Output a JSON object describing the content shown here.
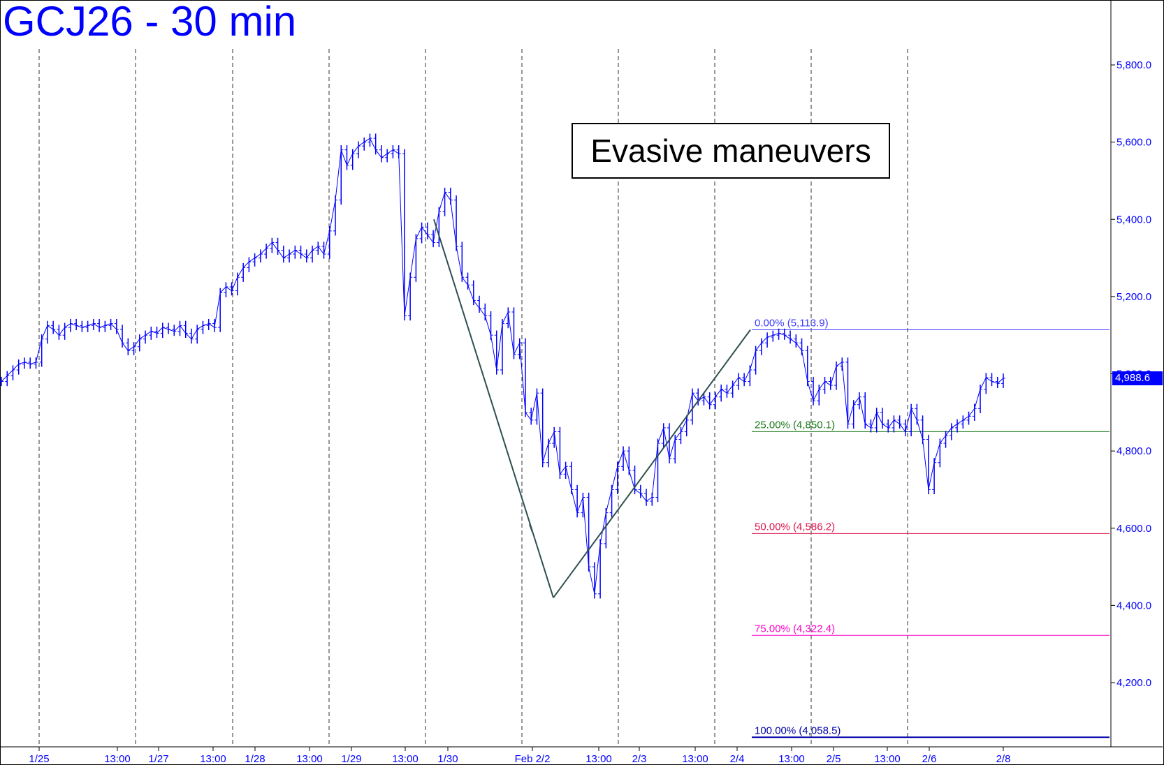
{
  "title": "GCJ26 - 30 min",
  "annotation": "Evasive maneuvers",
  "last_price_label": "4,988.6",
  "colors": {
    "price": "#0000ff",
    "pattern": "#2f4f4f",
    "fib_0": "#3a3aff",
    "fib_25": "#1a7a1a",
    "fib_50": "#e0144c",
    "fib_75": "#ff00cc",
    "fib_100": "#0000aa"
  },
  "chart_data": {
    "type": "line",
    "series": [
      {
        "values": [
          4980,
          4995,
          5010,
          5025,
          5030,
          5025,
          5030,
          5090,
          5125,
          5115,
          5100,
          5120,
          5130,
          5125,
          5120,
          5125,
          5130,
          5120,
          5125,
          5130,
          5115,
          5080,
          5060,
          5070,
          5090,
          5100,
          5110,
          5105,
          5120,
          5115,
          5110,
          5125,
          5105,
          5090,
          5115,
          5125,
          5130,
          5120,
          5210,
          5225,
          5215,
          5250,
          5275,
          5290,
          5300,
          5310,
          5325,
          5340,
          5320,
          5300,
          5310,
          5320,
          5310,
          5300,
          5320,
          5330,
          5310,
          5370,
          5450,
          5580,
          5540,
          5570,
          5590,
          5600,
          5610,
          5580,
          5560,
          5570,
          5580,
          5570,
          5150,
          5250,
          5350,
          5380,
          5360,
          5340,
          5420,
          5470,
          5450,
          5330,
          5250,
          5230,
          5190,
          5170,
          5150,
          5100,
          5010,
          5130,
          5160,
          5050,
          5080,
          4900,
          4880,
          4950,
          4770,
          4820,
          4850,
          4740,
          4760,
          4700,
          4640,
          4680,
          4500,
          4430,
          4560,
          4640,
          4700,
          4760,
          4800,
          4750,
          4700,
          4690,
          4670,
          4680,
          4820,
          4860,
          4780,
          4830,
          4850,
          4880,
          4950,
          4930,
          4940,
          4920,
          4940,
          4960,
          4950,
          4970,
          4990,
          4980,
          5010,
          5060,
          5080,
          5095,
          5100,
          5105,
          5100,
          5090,
          5080,
          5060,
          4980,
          4930,
          4960,
          4980,
          4970,
          5020,
          5030,
          4870,
          4920,
          4940,
          4870,
          4860,
          4900,
          4870,
          4860,
          4880,
          4870,
          4850,
          4910,
          4880,
          4830,
          4700,
          4770,
          4820,
          4840,
          4860,
          4870,
          4880,
          4890,
          4910,
          4960,
          4990,
          4980,
          4975,
          4988.6
        ]
      }
    ],
    "x_tick_labels": [
      "1/25",
      "13:00",
      "1/27",
      "13:00",
      "1/28",
      "13:00",
      "1/29",
      "13:00",
      "1/30",
      "Feb 2/2",
      "13:00",
      "2/3",
      "13:00",
      "2/4",
      "13:00",
      "2/5",
      "13:00",
      "2/6",
      "2/8"
    ],
    "y_ticks": [
      4200,
      4400,
      4600,
      4800,
      5000,
      5200,
      5400,
      5600,
      5800
    ],
    "y_tick_labels": [
      "4,200.0",
      "4,400.0",
      "4,600.0",
      "4,800.0",
      "5,000.0",
      "5,200.0",
      "5,400.0",
      "5,600.0",
      "5,800.0"
    ],
    "ylim": [
      4030,
      5960
    ],
    "grid": "vertical dashed at date boundaries",
    "pattern_points": [
      5400,
      4420,
      5113.9
    ],
    "fib_levels": [
      {
        "label": "0.00% (5,113.9)",
        "value": 5113.9
      },
      {
        "label": "25.00% (4,850.1)",
        "value": 4850.1
      },
      {
        "label": "50.00% (4,586.2)",
        "value": 4586.2
      },
      {
        "label": "75.00% (4,322.4)",
        "value": 4322.4
      },
      {
        "label": "100.00% (4,058.5)",
        "value": 4058.5
      }
    ]
  }
}
